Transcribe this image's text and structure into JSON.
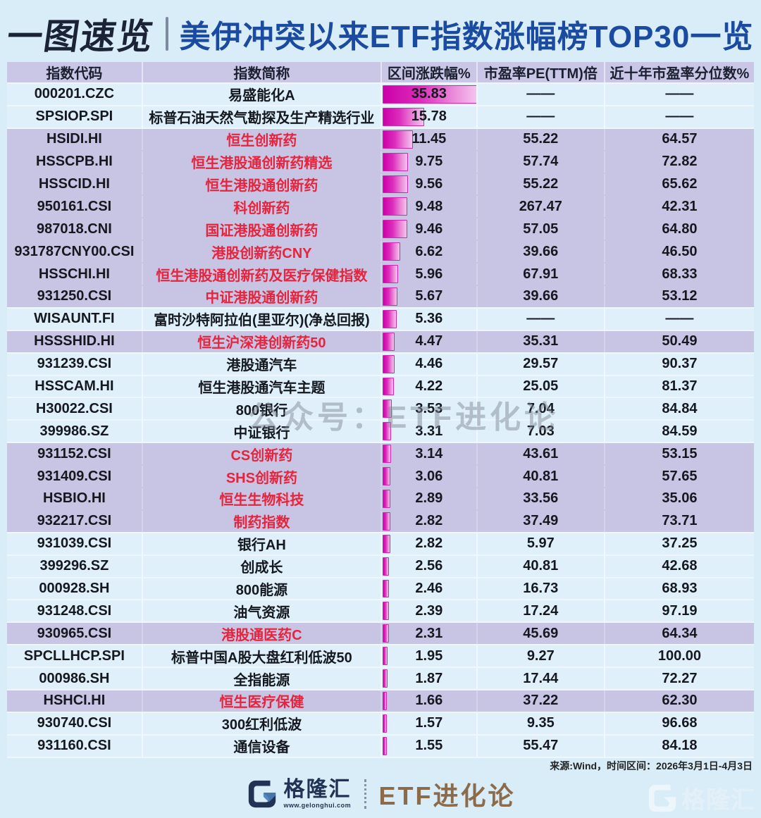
{
  "title": {
    "badge": "一图速览",
    "main": "美伊冲突以来ETF指数涨幅榜TOP30一览"
  },
  "chart_data": {
    "type": "table",
    "title": "美伊冲突以来ETF指数涨幅榜TOP30一览",
    "columns": [
      "指数代码",
      "指数简称",
      "区间涨跌幅%",
      "市盈率PE(TTM)倍",
      "近十年市盈率分位数%"
    ],
    "bar_column": "区间涨跌幅%",
    "bar_max": 35.83,
    "null_marker": "——",
    "rows": [
      {
        "code": "000201.CZC",
        "name": "易盛能化A",
        "change": "35.83",
        "pe": "——",
        "pct": "——",
        "hl": false,
        "red": false
      },
      {
        "code": "SPSIOP.SPI",
        "name": "标普石油天然气勘探及生产精选行业",
        "change": "15.78",
        "pe": "——",
        "pct": "——",
        "hl": false,
        "red": false
      },
      {
        "code": "HSIDI.HI",
        "name": "恒生创新药",
        "change": "11.45",
        "pe": "55.22",
        "pct": "64.57",
        "hl": true,
        "red": true
      },
      {
        "code": "HSSCPB.HI",
        "name": "恒生港股通创新药精选",
        "change": "9.75",
        "pe": "57.74",
        "pct": "72.82",
        "hl": true,
        "red": true
      },
      {
        "code": "HSSCID.HI",
        "name": "恒生港股通创新药",
        "change": "9.56",
        "pe": "55.22",
        "pct": "65.62",
        "hl": true,
        "red": true
      },
      {
        "code": "950161.CSI",
        "name": "科创新药",
        "change": "9.48",
        "pe": "267.47",
        "pct": "42.31",
        "hl": true,
        "red": true
      },
      {
        "code": "987018.CNI",
        "name": "国证港股通创新药",
        "change": "9.46",
        "pe": "57.05",
        "pct": "64.80",
        "hl": true,
        "red": true
      },
      {
        "code": "931787CNY00.CSI",
        "name": "港股创新药CNY",
        "change": "6.62",
        "pe": "39.66",
        "pct": "46.50",
        "hl": true,
        "red": true
      },
      {
        "code": "HSSCHI.HI",
        "name": "恒生港股通创新药及医疗保健指数",
        "change": "5.96",
        "pe": "67.91",
        "pct": "68.33",
        "hl": true,
        "red": true
      },
      {
        "code": "931250.CSI",
        "name": "中证港股通创新药",
        "change": "5.67",
        "pe": "39.66",
        "pct": "53.12",
        "hl": true,
        "red": true
      },
      {
        "code": "WISAUNT.FI",
        "name": "富时沙特阿拉伯(里亚尔)(净总回报)",
        "change": "5.36",
        "pe": "——",
        "pct": "——",
        "hl": false,
        "red": false
      },
      {
        "code": "HSSSHID.HI",
        "name": "恒生沪深港创新药50",
        "change": "4.47",
        "pe": "35.31",
        "pct": "50.49",
        "hl": true,
        "red": true
      },
      {
        "code": "931239.CSI",
        "name": "港股通汽车",
        "change": "4.46",
        "pe": "29.57",
        "pct": "90.37",
        "hl": false,
        "red": false
      },
      {
        "code": "HSSCAM.HI",
        "name": "恒生港股通汽车主题",
        "change": "4.22",
        "pe": "25.05",
        "pct": "81.37",
        "hl": false,
        "red": false
      },
      {
        "code": "H30022.CSI",
        "name": "800银行",
        "change": "3.53",
        "pe": "7.04",
        "pct": "84.84",
        "hl": false,
        "red": false
      },
      {
        "code": "399986.SZ",
        "name": "中证银行",
        "change": "3.31",
        "pe": "7.03",
        "pct": "84.59",
        "hl": false,
        "red": false
      },
      {
        "code": "931152.CSI",
        "name": "CS创新药",
        "change": "3.14",
        "pe": "43.61",
        "pct": "53.15",
        "hl": true,
        "red": true
      },
      {
        "code": "931409.CSI",
        "name": "SHS创新药",
        "change": "3.06",
        "pe": "40.81",
        "pct": "57.65",
        "hl": true,
        "red": true
      },
      {
        "code": "HSBIO.HI",
        "name": "恒生生物科技",
        "change": "2.89",
        "pe": "33.56",
        "pct": "35.06",
        "hl": true,
        "red": true
      },
      {
        "code": "932217.CSI",
        "name": "制药指数",
        "change": "2.82",
        "pe": "37.49",
        "pct": "73.71",
        "hl": true,
        "red": true
      },
      {
        "code": "931039.CSI",
        "name": "银行AH",
        "change": "2.82",
        "pe": "5.97",
        "pct": "37.25",
        "hl": false,
        "red": false
      },
      {
        "code": "399296.SZ",
        "name": "创成长",
        "change": "2.56",
        "pe": "40.81",
        "pct": "42.68",
        "hl": false,
        "red": false
      },
      {
        "code": "000928.SH",
        "name": "800能源",
        "change": "2.46",
        "pe": "16.73",
        "pct": "68.93",
        "hl": false,
        "red": false
      },
      {
        "code": "931248.CSI",
        "name": "油气资源",
        "change": "2.39",
        "pe": "17.24",
        "pct": "97.19",
        "hl": false,
        "red": false
      },
      {
        "code": "930965.CSI",
        "name": "港股通医药C",
        "change": "2.31",
        "pe": "45.69",
        "pct": "64.34",
        "hl": true,
        "red": true
      },
      {
        "code": "SPCLLHCP.SPI",
        "name": "标普中国A股大盘红利低波50",
        "change": "1.95",
        "pe": "9.27",
        "pct": "100.00",
        "hl": false,
        "red": false
      },
      {
        "code": "000986.SH",
        "name": "全指能源",
        "change": "1.87",
        "pe": "17.44",
        "pct": "72.27",
        "hl": false,
        "red": false
      },
      {
        "code": "HSHCI.HI",
        "name": "恒生医疗保健",
        "change": "1.66",
        "pe": "37.22",
        "pct": "62.30",
        "hl": true,
        "red": true
      },
      {
        "code": "930740.CSI",
        "name": "300红利低波",
        "change": "1.57",
        "pe": "9.35",
        "pct": "96.68",
        "hl": false,
        "red": false
      },
      {
        "code": "931160.CSI",
        "name": "通信设备",
        "change": "1.55",
        "pe": "55.47",
        "pct": "84.18",
        "hl": false,
        "red": false
      }
    ]
  },
  "watermarks": {
    "center": "公众号：ETF进化论",
    "corner_brand": "格隆汇"
  },
  "footer": {
    "source": "来源:Wind，时间区间：2026年3月1日-4月3日",
    "brand": "格隆汇",
    "brand_url": "www.gelonghui.com",
    "sub_brand": "ETF进化论"
  },
  "colors": {
    "page_bg": "#d9edf8",
    "header_bg": "#c9c6e6",
    "row_light": "#dff0fa",
    "row_highlight": "#c7c5e3",
    "red_text": "#e6243e",
    "bar_deep": "#cb01a8",
    "bar_light": "#f4c4ee",
    "bar_border": "#cf28ae",
    "title_badge": "#1b2336",
    "title_main": "#1a4ba0",
    "brand_navy": "#203354",
    "brand_brown": "#8c6b4a"
  }
}
